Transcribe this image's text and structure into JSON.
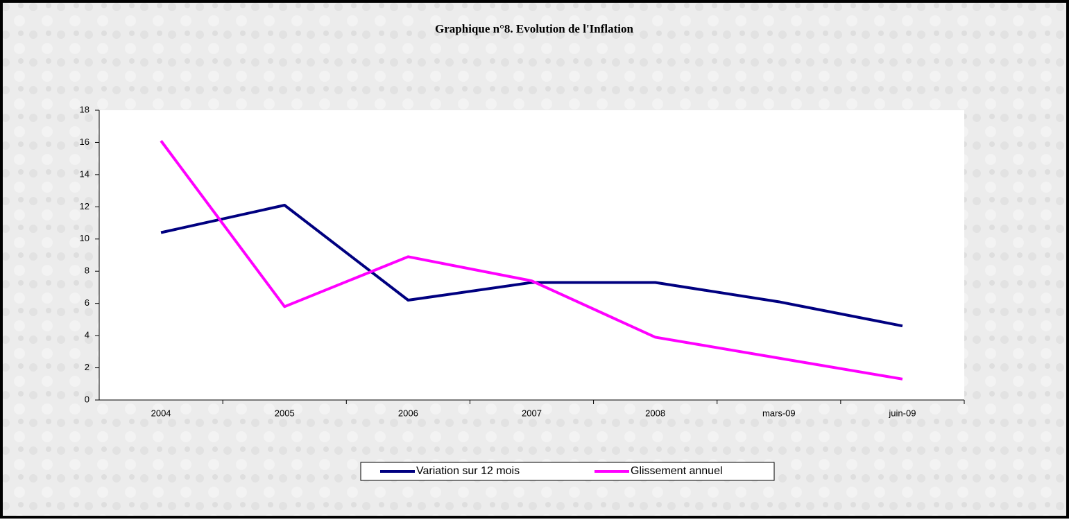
{
  "chart_data": {
    "type": "line",
    "title": "Graphique n°8. Evolution de l'Inflation",
    "categories": [
      "2004",
      "2005",
      "2006",
      "2007",
      "2008",
      "mars-09",
      "juin-09"
    ],
    "series": [
      {
        "name": "Variation sur 12 mois",
        "color": "#000080",
        "values": [
          10.4,
          12.1,
          6.2,
          7.3,
          7.3,
          6.1,
          4.6
        ]
      },
      {
        "name": "Glissement annuel",
        "color": "#ff00ff",
        "values": [
          16.1,
          5.8,
          8.9,
          7.4,
          3.9,
          2.6,
          1.3
        ]
      }
    ],
    "ylim": [
      0,
      18
    ],
    "yticks": [
      0,
      2,
      4,
      6,
      8,
      10,
      12,
      14,
      16,
      18
    ],
    "grid": false,
    "legend": "bottom"
  }
}
